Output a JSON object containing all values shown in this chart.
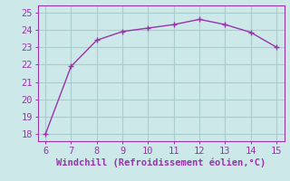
{
  "x": [
    6,
    7,
    8,
    9,
    10,
    11,
    12,
    13,
    14,
    15
  ],
  "y": [
    18.0,
    21.9,
    23.4,
    23.9,
    24.1,
    24.3,
    24.6,
    24.3,
    23.85,
    23.0
  ],
  "line_color": "#9933aa",
  "marker_color": "#9933aa",
  "background_color": "#cce8e8",
  "grid_color": "#aacccc",
  "xlabel": "Windchill (Refroidissement éolien,°C)",
  "xlabel_color": "#9933aa",
  "tick_color": "#9933aa",
  "spine_color": "#9933aa",
  "xlim": [
    5.7,
    15.3
  ],
  "ylim": [
    17.6,
    25.4
  ],
  "xticks": [
    6,
    7,
    8,
    9,
    10,
    11,
    12,
    13,
    14,
    15
  ],
  "yticks": [
    18,
    19,
    20,
    21,
    22,
    23,
    24,
    25
  ],
  "xlabel_fontsize": 7.5,
  "tick_fontsize": 7.5,
  "line_width": 1.0,
  "marker_size": 4
}
